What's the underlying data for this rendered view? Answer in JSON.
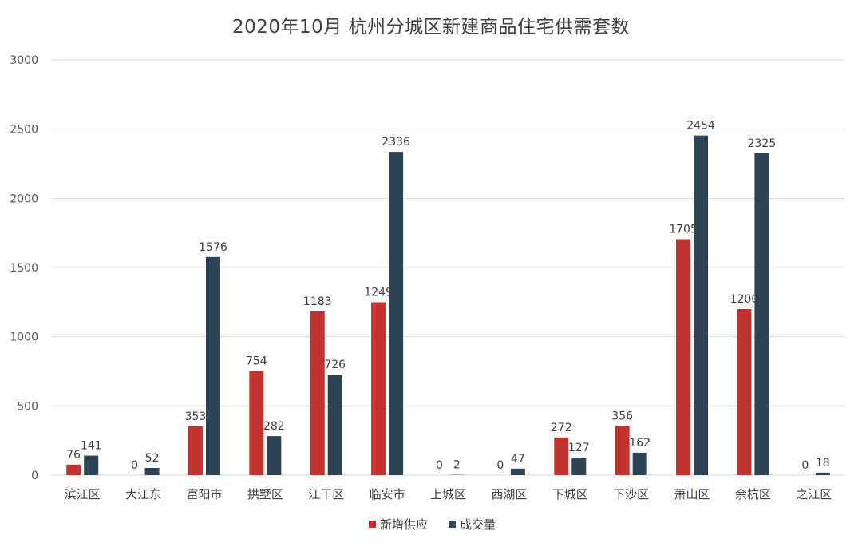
{
  "chart_data": {
    "type": "bar",
    "title": "2020年10月 杭州分城区新建商品住宅供需套数",
    "xlabel": "",
    "ylabel": "",
    "ylim": [
      0,
      3000
    ],
    "yticks": [
      0,
      500,
      1000,
      1500,
      2000,
      2500,
      3000
    ],
    "grid": true,
    "legend_position": "bottom",
    "categories": [
      "滨江区",
      "大江东",
      "富阳市",
      "拱墅区",
      "江干区",
      "临安市",
      "上城区",
      "西湖区",
      "下城区",
      "下沙区",
      "萧山区",
      "余杭区",
      "之江区"
    ],
    "series": [
      {
        "name": "新增供应",
        "color": "#C0332F",
        "values": [
          76,
          0,
          353,
          754,
          1183,
          1249,
          0,
          0,
          272,
          356,
          1705,
          1200,
          0
        ]
      },
      {
        "name": "成交量",
        "color": "#2E4353",
        "values": [
          141,
          52,
          1576,
          282,
          726,
          2336,
          2,
          47,
          127,
          162,
          2454,
          2325,
          18
        ]
      }
    ]
  }
}
